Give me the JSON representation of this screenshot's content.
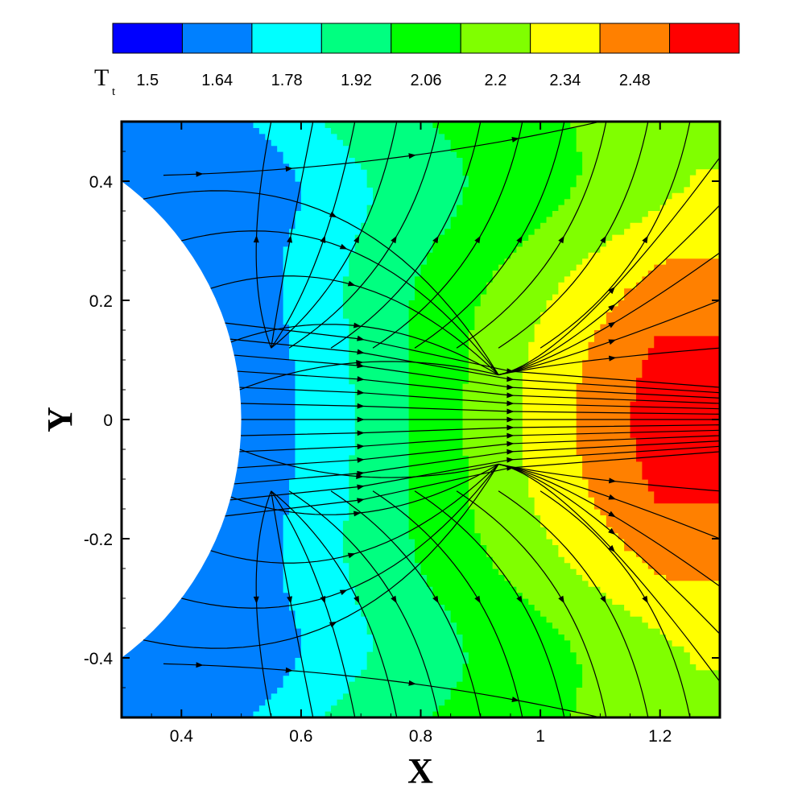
{
  "chart_data": {
    "type": "heatmap",
    "subtype": "filled contour with streamlines",
    "title": "",
    "xlabel": "X",
    "ylabel": "Y",
    "xlim": [
      0.3,
      1.3
    ],
    "ylim": [
      -0.5,
      0.5
    ],
    "xticks": [
      0.4,
      0.6,
      0.8,
      1.0,
      1.2
    ],
    "xtick_labels": [
      "0.4",
      "0.6",
      "0.8",
      "1",
      "1.2"
    ],
    "yticks": [
      -0.4,
      -0.2,
      0,
      0.2,
      0.4
    ],
    "ytick_labels": [
      "-0.4",
      "-0.2",
      "0",
      "0.2",
      "0.4"
    ],
    "legend": {
      "title": "T",
      "title_subscript": "t",
      "placement": "top",
      "levels": [
        1.5,
        1.64,
        1.78,
        1.92,
        2.06,
        2.2,
        2.34,
        2.48
      ],
      "level_labels": [
        "1.5",
        "1.64",
        "1.78",
        "1.92",
        "2.06",
        "2.2",
        "2.34",
        "2.48"
      ],
      "colors": [
        "#0000ff",
        "#0080ff",
        "#00ffff",
        "#00ff80",
        "#00ff00",
        "#80ff00",
        "#ffff00",
        "#ff8000",
        "#ff0000"
      ]
    },
    "field": {
      "variable": "T_t",
      "obstacle": "circular body, center x=0, radius 0.5 (white region)",
      "min": 1.5,
      "max": 2.55,
      "max_location": [
        1.28,
        0
      ],
      "min_location": [
        0.5,
        0
      ]
    },
    "streamlines": {
      "direction": "toward the body",
      "separation_points": [
        [
          0.93,
          0.075
        ],
        [
          0.93,
          -0.075
        ]
      ],
      "outer_separation_lines_y": [
        0.41,
        -0.41
      ]
    },
    "grid": false
  }
}
